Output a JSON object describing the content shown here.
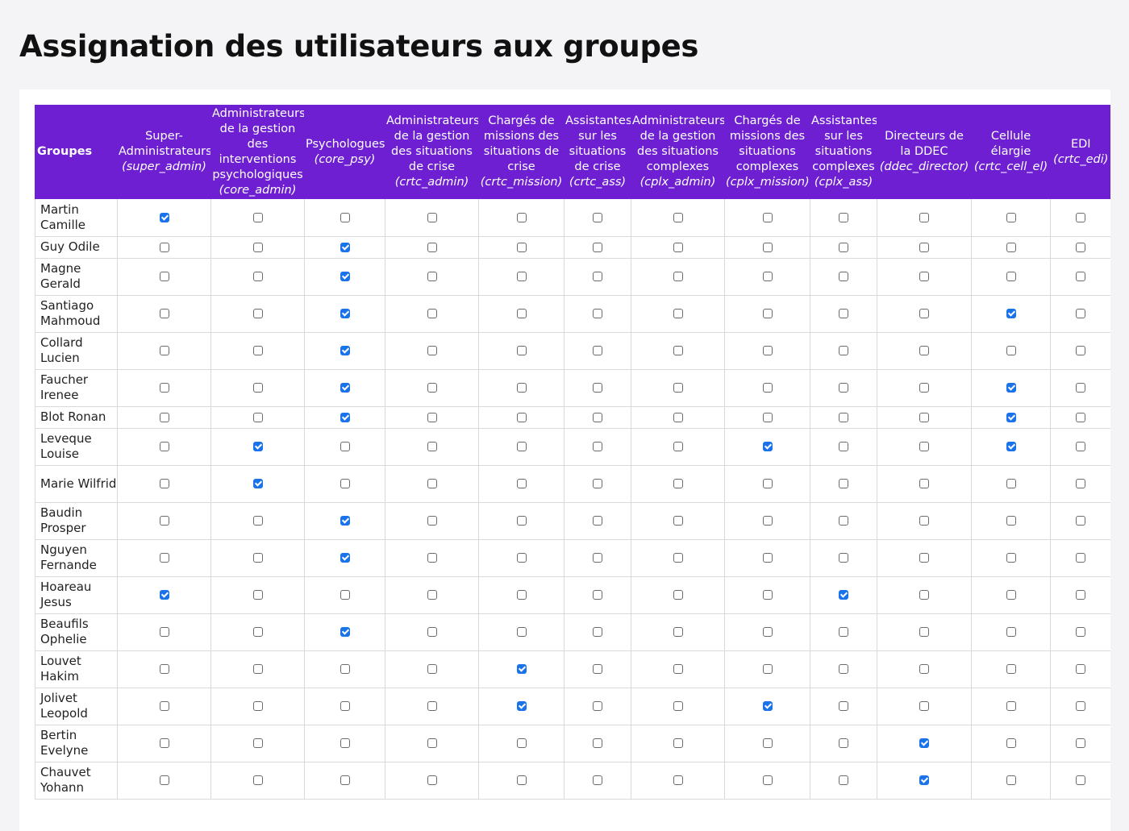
{
  "page": {
    "title": "Assignation des utilisateurs aux groupes"
  },
  "colors": {
    "header_bg": "#6d1fd1",
    "checkbox_checked": "#1a73e8",
    "grid_line": "#d9d9de"
  },
  "table": {
    "first_header": "Groupes",
    "columns": [
      {
        "key": "super_admin",
        "name": "Super-Administrateurs",
        "code": "(super_admin)"
      },
      {
        "key": "core_admin",
        "name": "Administrateurs de la gestion des interventions psychologiques",
        "code": "(core_admin)"
      },
      {
        "key": "core_psy",
        "name": "Psychologues",
        "code": "(core_psy)"
      },
      {
        "key": "crtc_admin",
        "name": "Administrateurs de la gestion des situations de crise",
        "code": "(crtc_admin)"
      },
      {
        "key": "crtc_mission",
        "name": "Chargés de missions des situations de crise",
        "code": "(crtc_mission)"
      },
      {
        "key": "crtc_ass",
        "name": "Assistantes sur les situations de crise",
        "code": "(crtc_ass)"
      },
      {
        "key": "cplx_admin",
        "name": "Administrateurs de la gestion des situations complexes",
        "code": "(cplx_admin)"
      },
      {
        "key": "cplx_mission",
        "name": "Chargés de missions des situations complexes",
        "code": "(cplx_mission)"
      },
      {
        "key": "cplx_ass",
        "name": "Assistantes sur les situations complexes",
        "code": "(cplx_ass)"
      },
      {
        "key": "ddec_director",
        "name": "Directeurs de la DDEC",
        "code": "(ddec_director)"
      },
      {
        "key": "crtc_cell_el",
        "name": "Cellule élargie",
        "code": "(crtc_cell_el)"
      },
      {
        "key": "crtc_edi",
        "name": "EDI",
        "code": "(crtc_edi)"
      }
    ],
    "rows": [
      {
        "name": "Martin Camille",
        "checked": [
          true,
          false,
          false,
          false,
          false,
          false,
          false,
          false,
          false,
          false,
          false,
          false
        ]
      },
      {
        "name": "Guy Odile",
        "checked": [
          false,
          false,
          true,
          false,
          false,
          false,
          false,
          false,
          false,
          false,
          false,
          false
        ]
      },
      {
        "name": "Magne Gerald",
        "checked": [
          false,
          false,
          true,
          false,
          false,
          false,
          false,
          false,
          false,
          false,
          false,
          false
        ]
      },
      {
        "name": "Santiago Mahmoud",
        "checked": [
          false,
          false,
          true,
          false,
          false,
          false,
          false,
          false,
          false,
          false,
          true,
          false
        ]
      },
      {
        "name": "Collard Lucien",
        "checked": [
          false,
          false,
          true,
          false,
          false,
          false,
          false,
          false,
          false,
          false,
          false,
          false
        ]
      },
      {
        "name": "Faucher Irenee",
        "checked": [
          false,
          false,
          true,
          false,
          false,
          false,
          false,
          false,
          false,
          false,
          true,
          false
        ]
      },
      {
        "name": "Blot Ronan",
        "checked": [
          false,
          false,
          true,
          false,
          false,
          false,
          false,
          false,
          false,
          false,
          true,
          false
        ]
      },
      {
        "name": "Leveque Louise",
        "checked": [
          false,
          true,
          false,
          false,
          false,
          false,
          false,
          true,
          false,
          false,
          true,
          false
        ]
      },
      {
        "name": "Marie Wilfrid",
        "checked": [
          false,
          true,
          false,
          false,
          false,
          false,
          false,
          false,
          false,
          false,
          false,
          false
        ]
      },
      {
        "name": "Baudin Prosper",
        "checked": [
          false,
          false,
          true,
          false,
          false,
          false,
          false,
          false,
          false,
          false,
          false,
          false
        ]
      },
      {
        "name": "Nguyen Fernande",
        "checked": [
          false,
          false,
          true,
          false,
          false,
          false,
          false,
          false,
          false,
          false,
          false,
          false
        ]
      },
      {
        "name": "Hoareau Jesus",
        "checked": [
          true,
          false,
          false,
          false,
          false,
          false,
          false,
          false,
          true,
          false,
          false,
          false
        ]
      },
      {
        "name": "Beaufils Ophelie",
        "checked": [
          false,
          false,
          true,
          false,
          false,
          false,
          false,
          false,
          false,
          false,
          false,
          false
        ]
      },
      {
        "name": "Louvet Hakim",
        "checked": [
          false,
          false,
          false,
          false,
          true,
          false,
          false,
          false,
          false,
          false,
          false,
          false
        ]
      },
      {
        "name": "Jolivet Leopold",
        "checked": [
          false,
          false,
          false,
          false,
          true,
          false,
          false,
          true,
          false,
          false,
          false,
          false
        ]
      },
      {
        "name": "Bertin Evelyne",
        "checked": [
          false,
          false,
          false,
          false,
          false,
          false,
          false,
          false,
          false,
          true,
          false,
          false
        ]
      },
      {
        "name": "Chauvet Yohann",
        "checked": [
          false,
          false,
          false,
          false,
          false,
          false,
          false,
          false,
          false,
          true,
          false,
          false
        ]
      }
    ]
  }
}
